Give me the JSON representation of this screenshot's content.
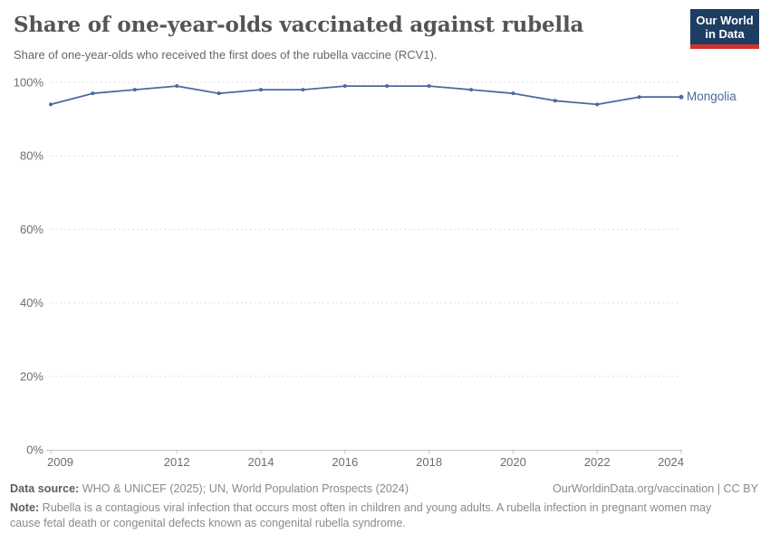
{
  "header": {
    "title": "Share of one-year-olds vaccinated against rubella",
    "subtitle": "Share of one-year-olds who received the first does of the rubella vaccine (RCV1).",
    "logo_line1": "Our World",
    "logo_line2": "in Data"
  },
  "chart_data": {
    "type": "line",
    "x": [
      2009,
      2010,
      2011,
      2012,
      2013,
      2014,
      2015,
      2016,
      2017,
      2018,
      2019,
      2020,
      2021,
      2022,
      2023,
      2024
    ],
    "series": [
      {
        "name": "Mongolia",
        "values": [
          94,
          97,
          98,
          99,
          97,
          98,
          98,
          99,
          99,
          99,
          98,
          97,
          95,
          94,
          96,
          96
        ]
      }
    ],
    "title": "Share of one-year-olds vaccinated against rubella",
    "xlabel": "",
    "ylabel": "",
    "ylim": [
      0,
      100
    ],
    "y_ticks": [
      0,
      20,
      40,
      60,
      80,
      100
    ],
    "y_tick_labels": [
      "0%",
      "20%",
      "40%",
      "60%",
      "80%",
      "100%"
    ],
    "x_ticks": [
      2009,
      2012,
      2014,
      2016,
      2018,
      2020,
      2022,
      2024
    ],
    "grid": "horizontal-dashed",
    "legend_position": "end-of-line",
    "line_color": "#4c6a9c"
  },
  "colors": {
    "line": "#4c6a9c",
    "title_text": "#555555",
    "subtitle_text": "#666666",
    "axis_text": "#6e6e6e",
    "gridline": "#dedede",
    "axis_line": "#c3c3c3",
    "footer_text": "#8a8a8a",
    "footer_bold_text": "#5e5e5e",
    "logo_background": "#1d3d63",
    "logo_red_bar": "#d0342c"
  },
  "footer": {
    "datasource_label": "Data source:",
    "datasource_text": " WHO & UNICEF (2025); UN, World Population Prospects (2024)",
    "attribution": "OurWorldinData.org/vaccination | CC BY",
    "note_label": "Note:",
    "note_text": " Rubella is a contagious viral infection that occurs most often in children and young adults. A rubella infection in pregnant women may cause fetal death or congenital defects known as congenital rubella syndrome."
  }
}
